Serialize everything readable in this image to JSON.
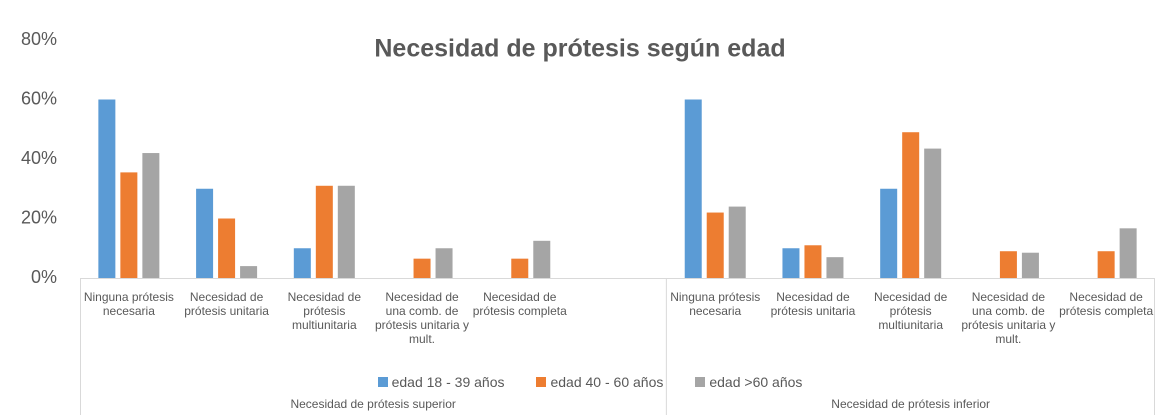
{
  "chart_data": {
    "type": "bar",
    "title": "Necesidad de prótesis según edad",
    "categories": [
      "Ninguna prótesis necesaria",
      "Necesidad de prótesis unitaria",
      "Necesidad de prótesis multiunitaria",
      "Necesidad de una comb. de prótesis unitaria y mult.",
      "Necesidad de prótesis completa",
      null,
      "Ninguna prótesis necesaria",
      "Necesidad de prótesis unitaria",
      "Necesidad de prótesis multiunitaria",
      "Necesidad de una comb. de prótesis unitaria y mult.",
      "Necesidad de prótesis completa"
    ],
    "groups": [
      "Necesidad de prótesis superior",
      "Necesidad de prótesis inferior"
    ],
    "series": [
      {
        "name": "edad 18 - 39 años",
        "color": "#5b9bd5",
        "values": [
          60,
          30,
          10,
          0,
          0,
          null,
          60,
          10,
          30,
          0,
          0
        ]
      },
      {
        "name": "edad 40 - 60 años",
        "color": "#ed7d31",
        "values": [
          35.5,
          20,
          31,
          6.5,
          6.5,
          null,
          22,
          11,
          49,
          9,
          9
        ]
      },
      {
        "name": "edad >60 años",
        "color": "#a5a5a5",
        "values": [
          42,
          4,
          31,
          10,
          12.5,
          null,
          24,
          7,
          43.5,
          8.5,
          16.7
        ]
      }
    ],
    "ylim": [
      0,
      80
    ],
    "yticks": [
      {
        "value": 0,
        "label": "0%"
      },
      {
        "value": 20,
        "label": "20%"
      },
      {
        "value": 40,
        "label": "40%"
      },
      {
        "value": 60,
        "label": "60%"
      },
      {
        "value": 80,
        "label": "80%"
      }
    ],
    "grid": false,
    "legend": "bottom"
  }
}
